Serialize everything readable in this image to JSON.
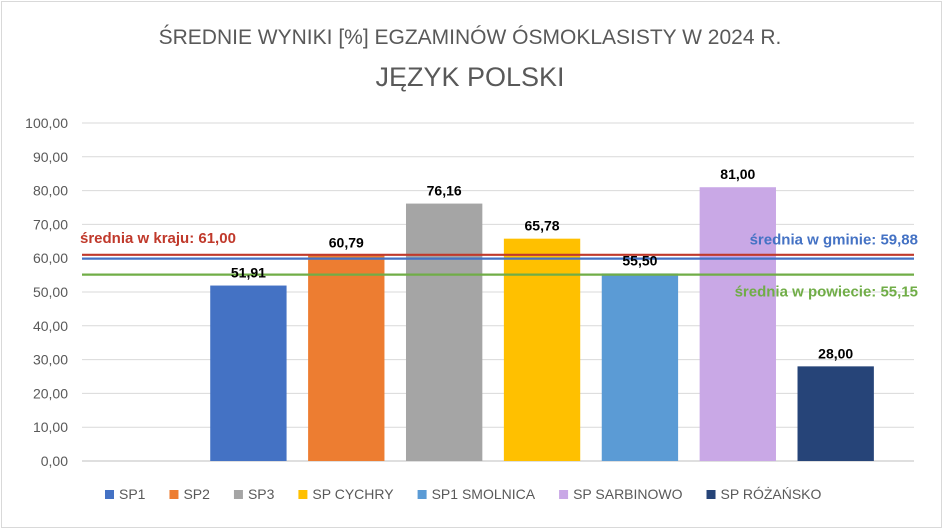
{
  "chart_data": {
    "type": "bar",
    "title": "ŚREDNIE WYNIKI [%] EGZAMINÓW ÓSMOKLASISTY  W 2024 R.",
    "subtitle": "JĘZYK POLSKI",
    "xlabel": "",
    "ylabel": "",
    "ylim": [
      0,
      100
    ],
    "yticks": [
      "0,00",
      "10,00",
      "20,00",
      "30,00",
      "40,00",
      "50,00",
      "60,00",
      "70,00",
      "80,00",
      "90,00",
      "100,00"
    ],
    "grid": true,
    "legend_position": "bottom",
    "categories": [
      "SP1",
      "SP2",
      "SP3",
      "SP CYCHRY",
      "SP1 SMOLNICA",
      "SP SARBINOWO",
      "SP RÓŻAŃSKO"
    ],
    "values": [
      51.91,
      60.79,
      76.16,
      65.78,
      55.5,
      81.0,
      28.0
    ],
    "value_labels": [
      "51,91",
      "60,79",
      "76,16",
      "65,78",
      "55,50",
      "81,00",
      "28,00"
    ],
    "colors": [
      "#4472c4",
      "#ed7d31",
      "#a5a5a5",
      "#ffc000",
      "#5b9bd5",
      "#c9a8e6",
      "#264478"
    ],
    "reference_lines": [
      {
        "label": "średnia w kraju: 61,00",
        "value": 61.0,
        "color": "#c0392b",
        "label_position": "left"
      },
      {
        "label": "średnia w gminie: 59,88",
        "value": 59.88,
        "color": "#4472c4",
        "label_position": "right"
      },
      {
        "label": "średnia w powiecie: 55,15",
        "value": 55.15,
        "color": "#70ad47",
        "label_position": "right"
      }
    ]
  }
}
